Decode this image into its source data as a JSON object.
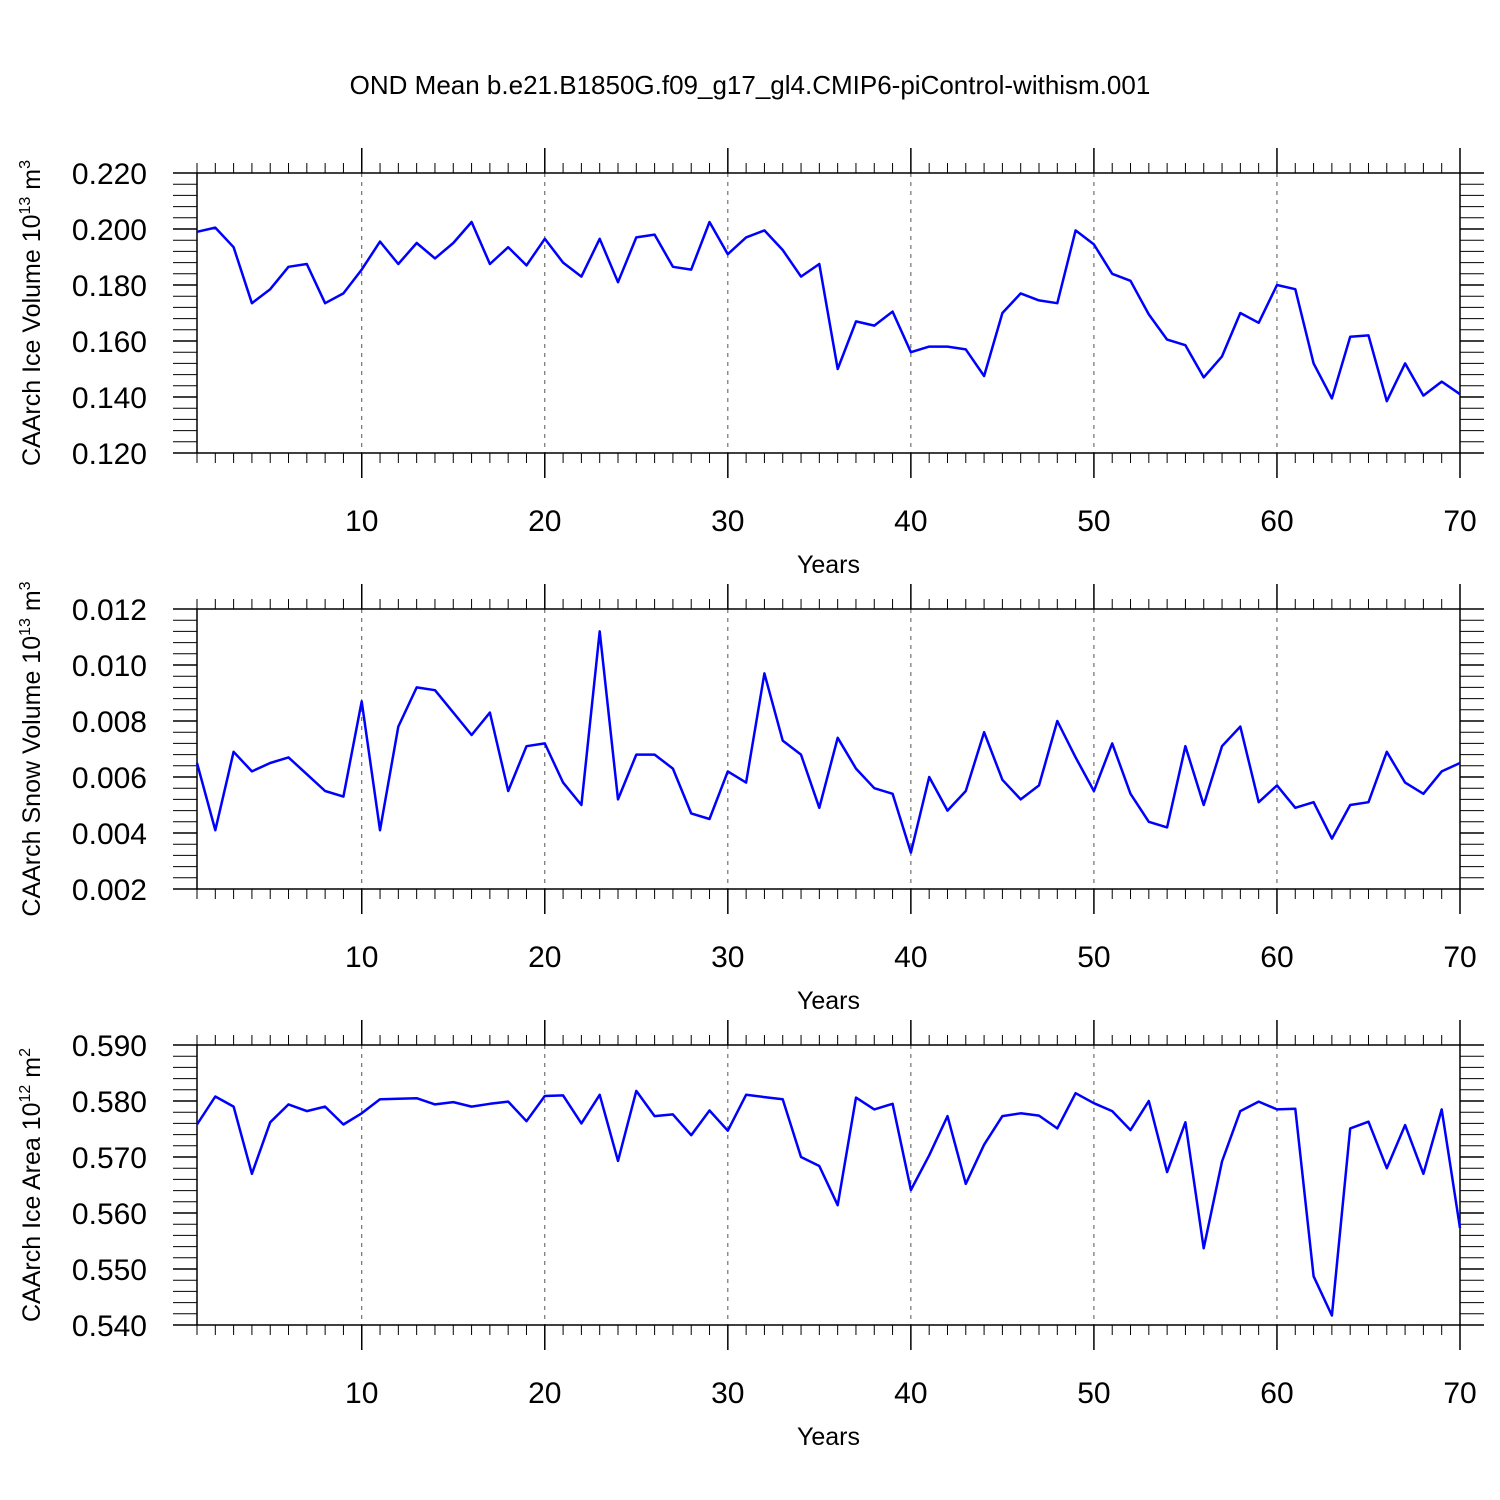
{
  "title": "OND Mean b.e21.B1850G.f09_g17_gl4.CMIP6-piControl-withism.001",
  "colors": {
    "line": "#0000ff",
    "axis": "#000000",
    "grid": "#555555",
    "background": "#ffffff"
  },
  "chart_data": [
    {
      "type": "line",
      "xlabel": "Years",
      "ylabel_text": "CAArch Ice Volume 10",
      "ylabel_exp": "13",
      "ylabel_unit": " m",
      "ylabel_unit_exp": "3",
      "xlim": [
        1,
        70
      ],
      "ylim": [
        0.12,
        0.22
      ],
      "xticks": [
        10,
        20,
        30,
        40,
        50,
        60,
        70
      ],
      "yticks": [
        0.12,
        0.14,
        0.16,
        0.18,
        0.2,
        0.22
      ],
      "ytick_labels": [
        "0.120",
        "0.140",
        "0.160",
        "0.180",
        "0.200",
        "0.220"
      ],
      "grid": "vertical dashed at major x ticks",
      "series": [
        {
          "x": [
            1,
            2,
            3,
            4,
            5,
            6,
            7,
            8,
            9,
            10,
            11,
            12,
            13,
            14,
            15,
            16,
            17,
            18,
            19,
            20,
            21,
            22,
            23,
            24,
            25,
            26,
            27,
            28,
            29,
            30,
            31,
            32,
            33,
            34,
            35,
            36,
            37,
            38,
            39,
            40,
            41,
            42,
            43,
            44,
            45,
            46,
            47,
            48,
            49,
            50,
            51,
            52,
            53,
            54,
            55,
            56,
            57,
            58,
            59,
            60,
            61,
            62,
            63,
            64,
            65,
            66,
            67,
            68,
            69,
            70
          ],
          "values": [
            0.199,
            0.2005,
            0.1935,
            0.1735,
            0.1785,
            0.1865,
            0.1875,
            0.1735,
            0.177,
            0.1855,
            0.1955,
            0.1875,
            0.195,
            0.1895,
            0.195,
            0.2025,
            0.1875,
            0.1935,
            0.187,
            0.1965,
            0.188,
            0.183,
            0.1965,
            0.181,
            0.197,
            0.198,
            0.1865,
            0.1855,
            0.2025,
            0.191,
            0.197,
            0.1995,
            0.1925,
            0.183,
            0.1875,
            0.15,
            0.167,
            0.1655,
            0.1705,
            0.156,
            0.158,
            0.158,
            0.157,
            0.1475,
            0.17,
            0.177,
            0.1745,
            0.1735,
            0.1995,
            0.1945,
            0.184,
            0.1815,
            0.1695,
            0.1605,
            0.1585,
            0.147,
            0.1545,
            0.17,
            0.1665,
            0.18,
            0.1785,
            0.152,
            0.1395,
            0.1615,
            0.162,
            0.1385,
            0.152,
            0.1405,
            0.1455,
            0.141
          ]
        }
      ]
    },
    {
      "type": "line",
      "xlabel": "Years",
      "ylabel_text": "CAArch Snow Volume 10",
      "ylabel_exp": "13",
      "ylabel_unit": " m",
      "ylabel_unit_exp": "3",
      "xlim": [
        1,
        70
      ],
      "ylim": [
        0.002,
        0.012
      ],
      "xticks": [
        10,
        20,
        30,
        40,
        50,
        60,
        70
      ],
      "yticks": [
        0.002,
        0.004,
        0.006,
        0.008,
        0.01,
        0.012
      ],
      "ytick_labels": [
        "0.002",
        "0.004",
        "0.006",
        "0.008",
        "0.010",
        "0.012"
      ],
      "grid": "vertical dashed at major x ticks",
      "series": [
        {
          "x": [
            1,
            2,
            3,
            4,
            5,
            6,
            7,
            8,
            9,
            10,
            11,
            12,
            13,
            14,
            15,
            16,
            17,
            18,
            19,
            20,
            21,
            22,
            23,
            24,
            25,
            26,
            27,
            28,
            29,
            30,
            31,
            32,
            33,
            34,
            35,
            36,
            37,
            38,
            39,
            40,
            41,
            42,
            43,
            44,
            45,
            46,
            47,
            48,
            49,
            50,
            51,
            52,
            53,
            54,
            55,
            56,
            57,
            58,
            59,
            60,
            61,
            62,
            63,
            64,
            65,
            66,
            67,
            68,
            69,
            70
          ],
          "values": [
            0.0065,
            0.0041,
            0.0069,
            0.0062,
            0.0065,
            0.0067,
            0.0061,
            0.0055,
            0.0053,
            0.0087,
            0.0041,
            0.0078,
            0.0092,
            0.0091,
            0.0083,
            0.0075,
            0.0083,
            0.0055,
            0.0071,
            0.0072,
            0.0058,
            0.005,
            0.0112,
            0.0052,
            0.0068,
            0.0068,
            0.0063,
            0.0047,
            0.0045,
            0.0062,
            0.0058,
            0.0097,
            0.0073,
            0.0068,
            0.0049,
            0.0074,
            0.0063,
            0.0056,
            0.0054,
            0.0033,
            0.006,
            0.0048,
            0.0055,
            0.0076,
            0.0059,
            0.0052,
            0.0057,
            0.008,
            0.0067,
            0.0055,
            0.0072,
            0.0054,
            0.0044,
            0.0042,
            0.0071,
            0.005,
            0.0071,
            0.0078,
            0.0051,
            0.0057,
            0.0049,
            0.0051,
            0.0038,
            0.005,
            0.0051,
            0.0069,
            0.0058,
            0.0054,
            0.0062,
            0.0065
          ]
        }
      ]
    },
    {
      "type": "line",
      "xlabel": "Years",
      "ylabel_text": "CAArch Ice Area 10",
      "ylabel_exp": "12",
      "ylabel_unit": " m",
      "ylabel_unit_exp": "2",
      "xlim": [
        1,
        70
      ],
      "ylim": [
        0.54,
        0.59
      ],
      "xticks": [
        10,
        20,
        30,
        40,
        50,
        60,
        70
      ],
      "yticks": [
        0.54,
        0.55,
        0.56,
        0.57,
        0.58,
        0.59
      ],
      "ytick_labels": [
        "0.540",
        "0.550",
        "0.560",
        "0.570",
        "0.580",
        "0.590"
      ],
      "grid": "vertical dashed at major x ticks",
      "series": [
        {
          "x": [
            1,
            2,
            3,
            4,
            5,
            6,
            7,
            8,
            9,
            10,
            11,
            12,
            13,
            14,
            15,
            16,
            17,
            18,
            19,
            20,
            21,
            22,
            23,
            24,
            25,
            26,
            27,
            28,
            29,
            30,
            31,
            32,
            33,
            34,
            35,
            36,
            37,
            38,
            39,
            40,
            41,
            42,
            43,
            44,
            45,
            46,
            47,
            48,
            49,
            50,
            51,
            52,
            53,
            54,
            55,
            56,
            57,
            58,
            59,
            60,
            61,
            62,
            63,
            64,
            65,
            66,
            67,
            68,
            69,
            70
          ],
          "values": [
            0.5758,
            0.5808,
            0.579,
            0.567,
            0.5762,
            0.5794,
            0.5782,
            0.579,
            0.5758,
            0.5778,
            0.5803,
            0.5804,
            0.5805,
            0.5794,
            0.5798,
            0.579,
            0.5795,
            0.5799,
            0.5764,
            0.5809,
            0.581,
            0.576,
            0.5811,
            0.5693,
            0.5818,
            0.5773,
            0.5776,
            0.5739,
            0.5783,
            0.5747,
            0.5811,
            0.5807,
            0.5803,
            0.57,
            0.5684,
            0.5614,
            0.5806,
            0.5785,
            0.5795,
            0.5641,
            0.5703,
            0.5773,
            0.5652,
            0.5722,
            0.5773,
            0.5778,
            0.5774,
            0.5751,
            0.5814,
            0.5796,
            0.5782,
            0.5748,
            0.58,
            0.5673,
            0.5762,
            0.5537,
            0.5692,
            0.5782,
            0.5799,
            0.5785,
            0.5786,
            0.5487,
            0.5417,
            0.5751,
            0.5763,
            0.568,
            0.5757,
            0.567,
            0.5785,
            0.5573
          ]
        }
      ]
    }
  ]
}
